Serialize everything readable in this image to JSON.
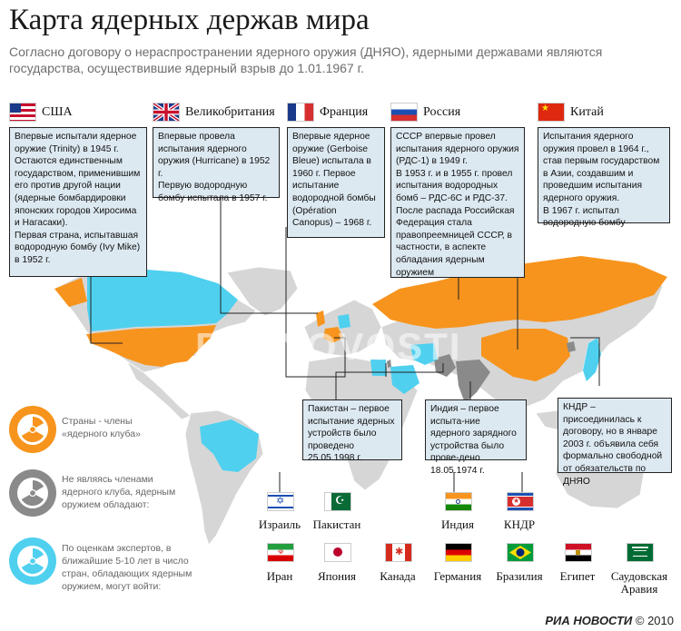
{
  "title": "Карта ядерных держав мира",
  "subtitle": "Согласно договору о нераспространении ядерного оружия (ДНЯО), ядерными державами являются государства, осуществившие ядерный взрыв до 1.01.1967 г.",
  "colors": {
    "member": "#f7941d",
    "nonmember": "#8a8a8a",
    "potential": "#4fd0ef",
    "land": "#d6d6d6",
    "box": "#dde9f1"
  },
  "powers": [
    {
      "name": "США",
      "flag": "us-flag",
      "text": [
        "Впервые испытали ядерное оружие (Trinity) в 1945 г.",
        "Остаются единственным государством, применившим его против другой нации (ядерные бомбардировки японских городов Хиросима и Нагасаки).",
        "Первая страна, испытавшая водородную бомбу (Ivy Mike) в 1952 г."
      ]
    },
    {
      "name": "Великобритания",
      "flag": "uk-flag",
      "text": [
        "Впервые провела испытания ядерного оружия (Hurricane) в 1952 г.",
        "Первую водородную бомбу испытала в 1957 г."
      ]
    },
    {
      "name": "Франция",
      "flag": "france-flag",
      "text": [
        "Впервые ядерное оружие (Gerboise Bleue) испытала в 1960 г. Первое испытание водородной бомбы (Opération Canopus) – 1968 г."
      ]
    },
    {
      "name": "Россия",
      "flag": "russia-flag",
      "text": [
        "СССР впервые провел испытания ядерного оружия (РДС-1) в 1949 г.",
        "В 1953 г. и в 1955 г. провел испытания водородных бомб – РДС-6С и РДС-37.",
        "После распада Российская Федерация стала правопреемницей СССР, в частности, в аспекте обладания ядерным оружием"
      ]
    },
    {
      "name": "Китай",
      "flag": "china-flag",
      "text": [
        "Испытания ядерного оружия провел в 1964 г., став первым государством в Азии, создавшим и проведшим испытания ядерного оружия.",
        "В 1967 г. испытал водородную бомбу"
      ]
    }
  ],
  "notes": {
    "pakistan": "Пакистан – первое испытание ядерных устройств было проведено 25.05.1998 г.",
    "india": "Индия – первое испыта-ние ядерного зарядного устройства было прове-дено 18.05.1974 г.",
    "dprk": "КНДР – присоединилась к договору, но в январе 2003 г. объявила себя формально свободной от обязательств по ДНЯО"
  },
  "legend": [
    {
      "icon": "radiation-orange-icon",
      "text": "Страны - члены «ядерного клуба»"
    },
    {
      "icon": "radiation-gray-icon",
      "text": "Не являясь членами ядерного клуба, ядерным оружием обладают:"
    },
    {
      "icon": "radiation-cyan-icon",
      "text": "По оценкам экспертов, в ближайшие 5-10 лет в число стран, обладающих ядерным оружием, могут войти:"
    }
  ],
  "nonmembers": [
    "Израиль",
    "Пакистан",
    "Индия",
    "КНДР"
  ],
  "potential": [
    "Иран",
    "Япония",
    "Канада",
    "Германия",
    "Бразилия",
    "Египет",
    "Саудовская Аравия"
  ],
  "footer": {
    "brand": "РИА НОВОСТИ",
    "year": "© 2010"
  },
  "watermark": "RIA NOVOSTI"
}
